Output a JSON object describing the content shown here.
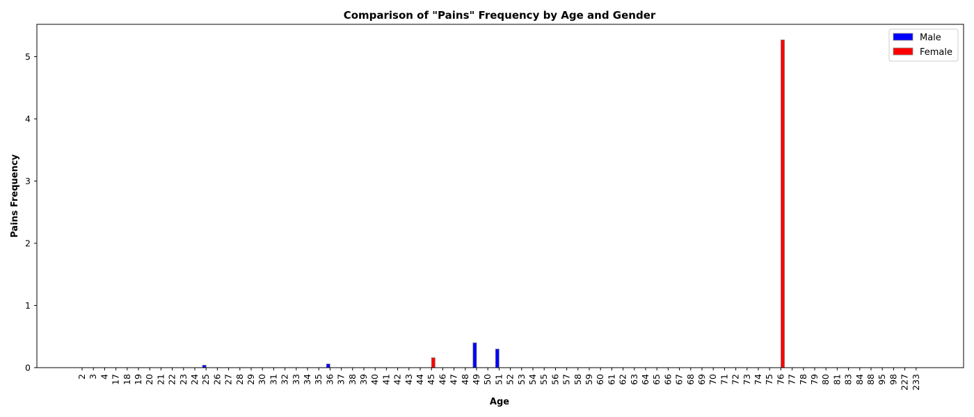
{
  "chart_data": {
    "type": "bar",
    "title": "Comparison of \"Pains\" Frequency by Age and Gender",
    "xlabel": "Age",
    "ylabel": "Pains Frequency",
    "ylim": [
      0,
      5.52
    ],
    "yticks": [
      0,
      1,
      2,
      3,
      4,
      5
    ],
    "grid": false,
    "legend": "top-right",
    "categories": [
      "2",
      "3",
      "4",
      "17",
      "18",
      "19",
      "20",
      "21",
      "22",
      "23",
      "24",
      "25",
      "26",
      "27",
      "28",
      "29",
      "30",
      "31",
      "32",
      "33",
      "34",
      "35",
      "36",
      "37",
      "38",
      "39",
      "40",
      "41",
      "42",
      "43",
      "44",
      "45",
      "46",
      "47",
      "48",
      "49",
      "50",
      "51",
      "52",
      "53",
      "54",
      "55",
      "56",
      "57",
      "58",
      "59",
      "60",
      "61",
      "62",
      "63",
      "64",
      "65",
      "66",
      "67",
      "68",
      "69",
      "70",
      "71",
      "72",
      "73",
      "74",
      "75",
      "76",
      "77",
      "78",
      "79",
      "80",
      "81",
      "83",
      "84",
      "88",
      "95",
      "98",
      "227",
      "233"
    ],
    "series": [
      {
        "name": "Male",
        "color": "#0000ff",
        "values": [
          0,
          0,
          0,
          0,
          0,
          0,
          0,
          0,
          0,
          0,
          0,
          0.04,
          0,
          0,
          0,
          0,
          0,
          0,
          0,
          0,
          0,
          0,
          0.06,
          0,
          0,
          0,
          0,
          0,
          0,
          0,
          0,
          0,
          0,
          0,
          0,
          0.4,
          0,
          0.3,
          0,
          0,
          0,
          0,
          0,
          0,
          0,
          0,
          0,
          0,
          0,
          0,
          0,
          0,
          0,
          0,
          0,
          0,
          0,
          0,
          0,
          0,
          0,
          0,
          0,
          0,
          0,
          0,
          0,
          0,
          0,
          0,
          0,
          0,
          0,
          0,
          0
        ]
      },
      {
        "name": "Female",
        "color": "#ff0000",
        "values": [
          0,
          0,
          0,
          0,
          0,
          0,
          0,
          0,
          0,
          0,
          0,
          0,
          0,
          0,
          0,
          0,
          0,
          0,
          0,
          0,
          0,
          0,
          0,
          0,
          0,
          0,
          0,
          0,
          0,
          0,
          0,
          0.16,
          0,
          0,
          0,
          0,
          0,
          0,
          0,
          0,
          0,
          0,
          0,
          0,
          0,
          0,
          0,
          0,
          0,
          0,
          0,
          0,
          0,
          0,
          0,
          0,
          0,
          0,
          0,
          0,
          0,
          0,
          5.27,
          0,
          0,
          0,
          0,
          0,
          0,
          0,
          0,
          0,
          0,
          0,
          0
        ]
      }
    ]
  }
}
